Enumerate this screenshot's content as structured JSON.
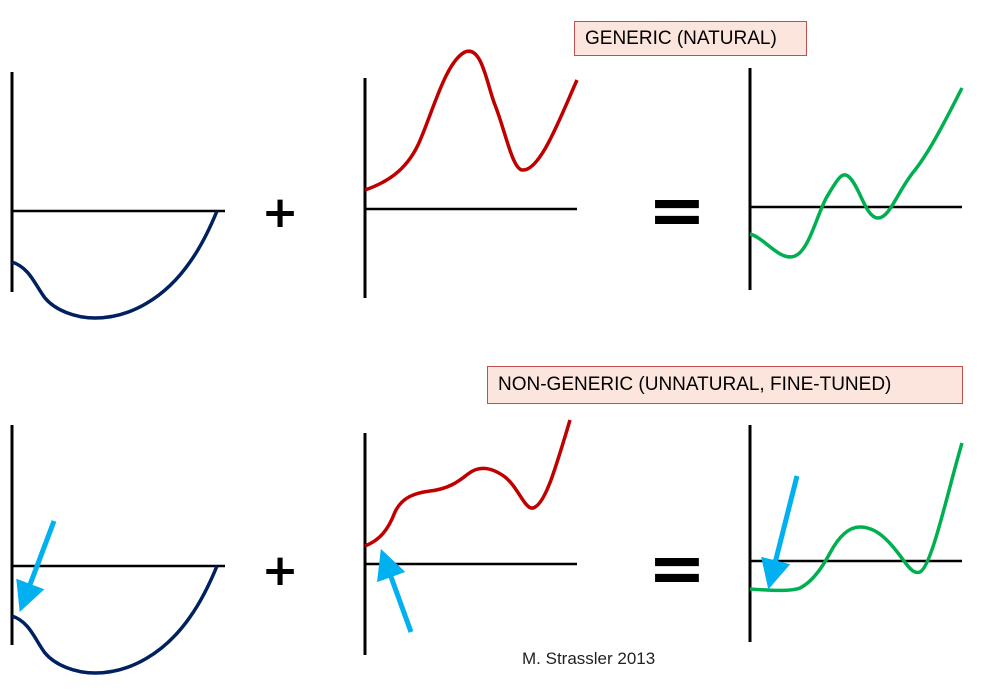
{
  "labels": {
    "generic": "GENERIC (NATURAL)",
    "non_generic": "NON-GENERIC (UNNATURAL, FINE-TUNED)"
  },
  "operators": {
    "plus": "+",
    "equals": "="
  },
  "credit": "M. Strassler 2013",
  "colors": {
    "axis": "#000000",
    "curve_first": "#002060",
    "curve_second": "#c00000",
    "curve_sum": "#00b050",
    "arrow": "#00b0f0",
    "label_fill": "#fbe5dc",
    "label_border": "#c0504d"
  }
}
